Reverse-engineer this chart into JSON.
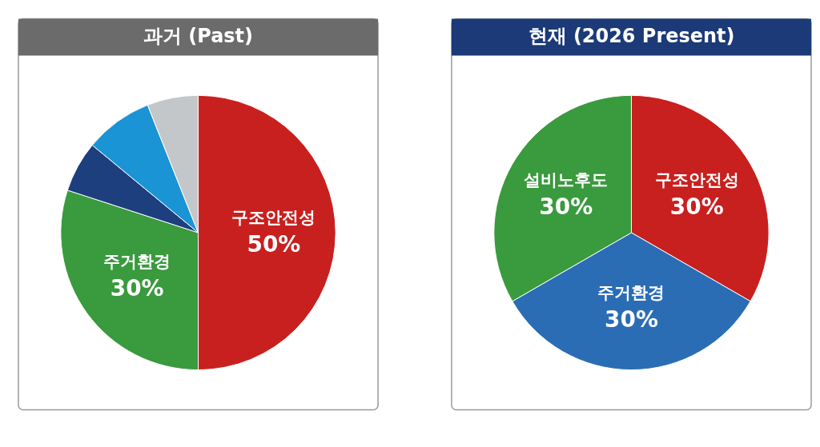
{
  "chart_data": [
    {
      "type": "pie",
      "title": "과거 (Past)",
      "categories": [
        "구조안전성",
        "주거환경",
        null,
        null,
        null
      ],
      "values": [
        50,
        30,
        6,
        8,
        6
      ],
      "colors": [
        "#c8201f",
        "#3a9a3e",
        "#1e3f7e",
        "#1b94d6",
        "#c4c7ca"
      ],
      "value_labels": [
        "50%",
        "30%",
        null,
        null,
        null
      ]
    },
    {
      "type": "pie",
      "title": "현재 (2026 Present)",
      "categories": [
        "구조안전성",
        "주거환경",
        "설비노후도"
      ],
      "values": [
        30,
        30,
        30
      ],
      "colors": [
        "#c8201f",
        "#2a6db5",
        "#3a9a3e"
      ],
      "value_labels": [
        "30%",
        "30%",
        "30%"
      ]
    }
  ]
}
